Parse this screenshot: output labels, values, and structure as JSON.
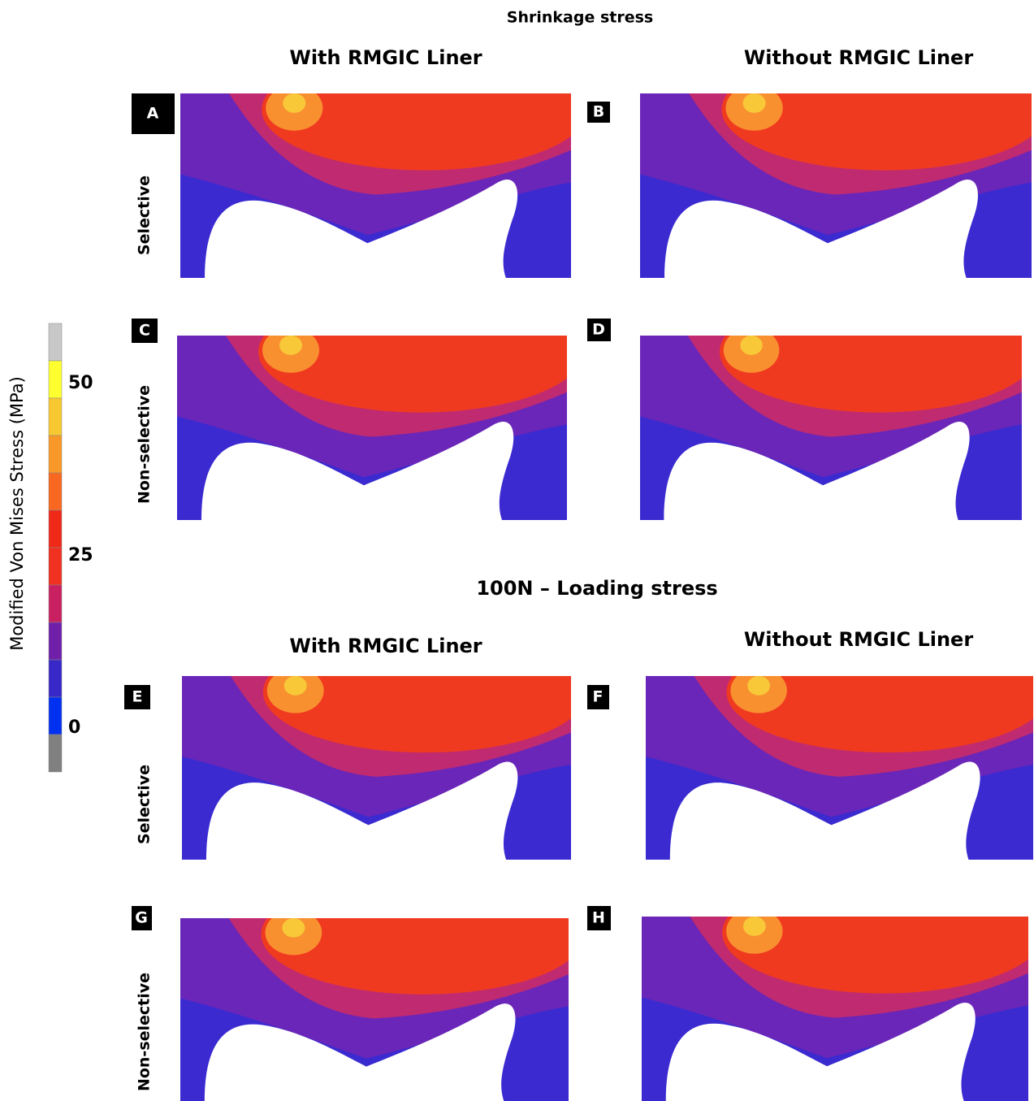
{
  "sections": [
    {
      "title": "Shrinkage stress",
      "columns": [
        "With RMGIC Liner",
        "Without RMGIC Liner"
      ],
      "rows": [
        "Selective",
        "Non-selective"
      ],
      "panels": [
        "A",
        "B",
        "C",
        "D"
      ]
    },
    {
      "title": "100N – Loading stress",
      "columns": [
        "With RMGIC Liner",
        "Without RMGIC Liner"
      ],
      "rows": [
        "Selective",
        "Non-selective"
      ],
      "panels": [
        "E",
        "F",
        "G",
        "H"
      ]
    }
  ],
  "colorbar": {
    "label": "Modified Von Mises Stress (MPa)",
    "ticks": [
      50,
      25,
      0
    ]
  }
}
